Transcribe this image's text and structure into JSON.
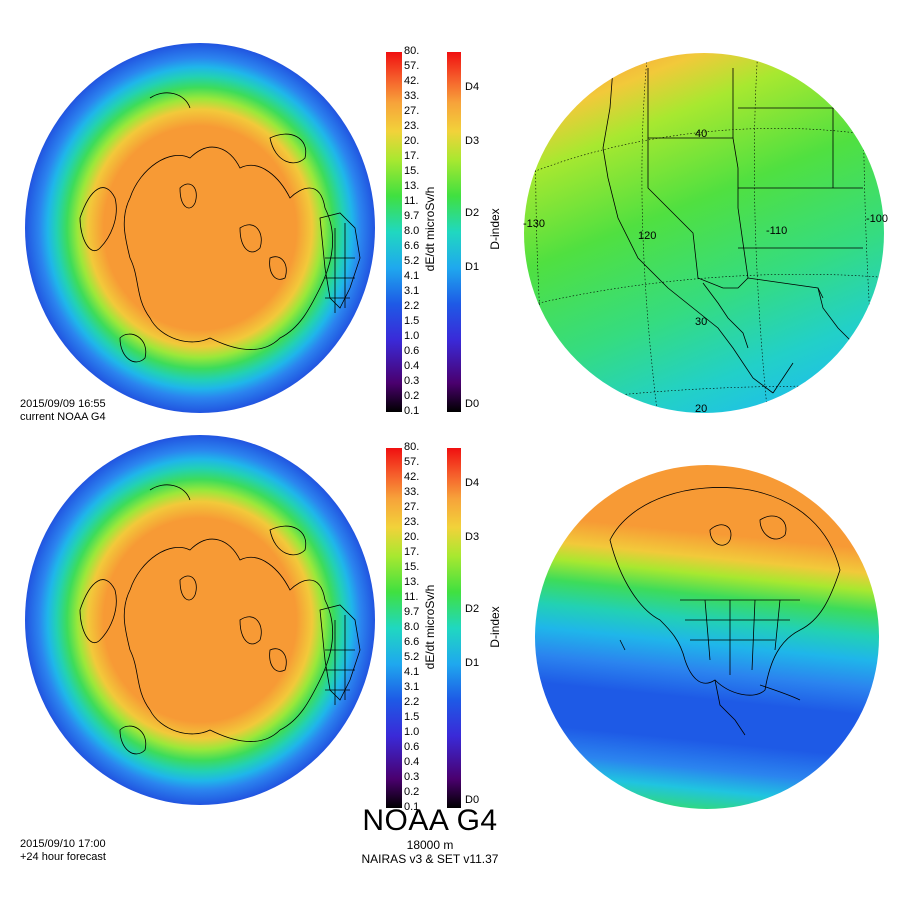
{
  "panels": {
    "top": {
      "date": "2015/09/09 16:55",
      "label": "current NOAA G4"
    },
    "bottom": {
      "date": "2015/09/10 17:00",
      "label": "+24 hour forecast"
    }
  },
  "dose_colorbar": {
    "title": "dE/dt microSv/h",
    "ticks": [
      "80.",
      "57.",
      "42.",
      "33.",
      "27.",
      "23.",
      "20.",
      "17.",
      "15.",
      "13.",
      "11.",
      "9.7",
      "8.0",
      "6.6",
      "5.2",
      "4.1",
      "3.1",
      "2.2",
      "1.5",
      "1.0",
      "0.6",
      "0.4",
      "0.3",
      "0.2",
      "0.1"
    ]
  },
  "dindex_colorbar": {
    "title": "D-index",
    "ticks": [
      "D4",
      "D3",
      "D2",
      "D1",
      "D0"
    ]
  },
  "regional_map": {
    "lon_labels": [
      "-130",
      "120",
      "-110",
      "-100"
    ],
    "lat_labels": [
      "40",
      "30",
      "20"
    ]
  },
  "footer": {
    "title": "NOAA G4",
    "altitude": "18000 m",
    "model": "NAIRAS v3 & SET v11.37"
  },
  "colors": {
    "orange": "#f7a23a",
    "green": "#40e040",
    "cyan": "#20c8e0",
    "blue": "#1e5ae6"
  }
}
